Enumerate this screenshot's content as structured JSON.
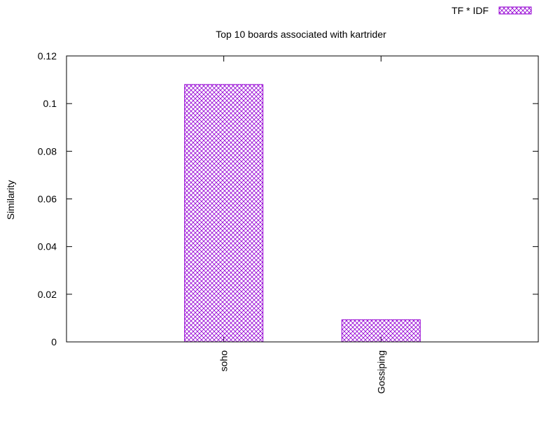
{
  "chart_data": {
    "type": "bar",
    "title": "Top 10 boards associated with kartrider",
    "xlabel": "",
    "ylabel": "Similarity",
    "categories": [
      "soho",
      "Gossiping"
    ],
    "series": [
      {
        "name": "TF * IDF",
        "values": [
          0.108,
          0.0093
        ],
        "color": "#9400d3"
      }
    ],
    "ylim": [
      0,
      0.12
    ],
    "yticks": [
      "0",
      "0.02",
      "0.04",
      "0.06",
      "0.08",
      "0.1",
      "0.12"
    ],
    "pattern": "crosshatch",
    "legend": "top-right",
    "grid": false
  }
}
